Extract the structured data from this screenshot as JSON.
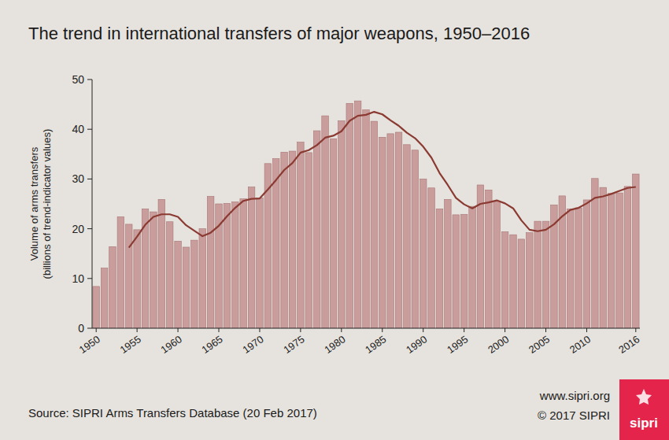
{
  "chart_data": {
    "type": "bar",
    "title": "The trend in international transfers of major weapons, 1950–2016",
    "ylabel": [
      "Volume of arms transfers",
      "(billions of trend-indicator values)"
    ],
    "source": "Source: SIPRI Arms Transfers Database (20 Feb 2017)",
    "annotations": [
      "www.sipri.org",
      "© 2017 SIPRI",
      "sipri"
    ],
    "categories": [
      "1950",
      null,
      null,
      null,
      null,
      "1955",
      null,
      null,
      null,
      null,
      "1960",
      null,
      null,
      null,
      null,
      "1965",
      null,
      null,
      null,
      null,
      "1970",
      null,
      null,
      null,
      null,
      "1975",
      null,
      null,
      null,
      null,
      "1980",
      null,
      null,
      null,
      null,
      "1985",
      null,
      null,
      null,
      null,
      "1990",
      null,
      null,
      null,
      null,
      "1995",
      null,
      null,
      null,
      null,
      "2000",
      null,
      null,
      null,
      null,
      "2005",
      null,
      null,
      null,
      null,
      "2010",
      null,
      null,
      null,
      null,
      null,
      "2016"
    ],
    "series": [
      {
        "type": "bar",
        "color": "#c99d9c",
        "values": [
          8.4,
          12.1,
          16.4,
          22.4,
          20.9,
          19.8,
          24.0,
          23.4,
          25.9,
          21.4,
          17.5,
          16.3,
          17.7,
          20.0,
          26.5,
          25.0,
          25.1,
          25.4,
          26.0,
          28.4,
          26.2,
          33.1,
          34.1,
          35.4,
          35.6,
          37.4,
          35.3,
          39.7,
          42.7,
          38.1,
          41.7,
          45.2,
          45.7,
          43.9,
          41.6,
          38.4,
          39.1,
          39.4,
          36.9,
          35.8,
          30.0,
          28.2,
          24.0,
          25.9,
          22.8,
          22.9,
          24.5,
          28.8,
          27.8,
          25.5,
          19.4,
          18.8,
          17.9,
          19.2,
          21.5,
          21.5,
          24.8,
          26.6,
          24.0,
          24.2,
          25.8,
          30.1,
          28.3,
          27.1,
          27.2,
          28.5,
          31.0
        ]
      },
      {
        "type": "line",
        "color": "#8b3a32",
        "values": [
          null,
          null,
          null,
          null,
          16.2,
          18.4,
          20.8,
          22.4,
          22.9,
          22.9,
          22.4,
          20.7,
          19.6,
          18.5,
          19.2,
          20.6,
          22.5,
          24.2,
          25.6,
          26.0,
          26.1,
          27.9,
          29.8,
          31.8,
          33.2,
          35.3,
          35.8,
          36.8,
          38.3,
          38.7,
          39.6,
          41.7,
          42.7,
          42.9,
          43.5,
          43.0,
          41.8,
          40.7,
          39.3,
          38.2,
          36.5,
          34.3,
          31.2,
          28.8,
          26.2,
          24.9,
          24.1,
          25.0,
          25.3,
          25.7,
          25.1,
          24.1,
          21.7,
          19.8,
          19.5,
          19.8,
          20.9,
          22.5,
          23.8,
          24.2,
          25.1,
          26.2,
          26.5,
          27.0,
          27.6,
          28.2,
          28.4
        ]
      }
    ],
    "ylim": [
      0,
      50
    ],
    "yticks": [
      0,
      10,
      20,
      30,
      40,
      50
    ],
    "grid": false
  }
}
